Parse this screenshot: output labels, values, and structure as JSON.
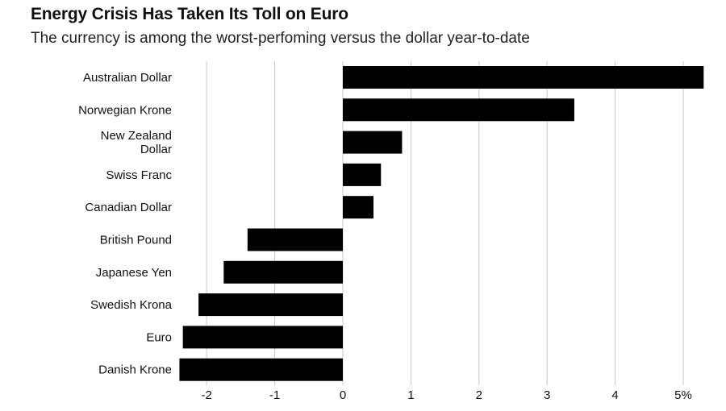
{
  "title": "Energy Crisis Has Taken Its Toll on Euro",
  "subtitle": "The currency is among the worst-perfoming versus the dollar year-to-date",
  "chart_data": {
    "type": "bar",
    "orientation": "horizontal",
    "title": "Energy Crisis Has Taken Its Toll on Euro",
    "subtitle": "The currency is among the worst-perfoming versus the dollar year-to-date",
    "xlabel": "",
    "ylabel": "",
    "xlim": [
      -2.4,
      5.3
    ],
    "grid": true,
    "bar_color": "#000000",
    "categories": [
      "Australian Dollar",
      "Norwegian Krone",
      "New Zealand Dollar",
      "Swiss Franc",
      "Canadian Dollar",
      "British Pound",
      "Japanese Yen",
      "Swedish Krona",
      "Euro",
      "Danish Krone"
    ],
    "category_lines": [
      [
        "Australian Dollar"
      ],
      [
        "Norwegian Krone"
      ],
      [
        "New Zealand",
        "Dollar"
      ],
      [
        "Swiss Franc"
      ],
      [
        "Canadian Dollar"
      ],
      [
        "British Pound"
      ],
      [
        "Japanese Yen"
      ],
      [
        "Swedish Krona"
      ],
      [
        "Euro"
      ],
      [
        "Danish Krone"
      ]
    ],
    "values": [
      5.3,
      3.4,
      0.87,
      0.56,
      0.45,
      -1.4,
      -1.75,
      -2.12,
      -2.35,
      -2.4
    ],
    "ticks": [
      -2,
      -1,
      0,
      1,
      2,
      3,
      4,
      5
    ],
    "tick_labels": [
      "-2",
      "-1",
      "0",
      "1",
      "2",
      "3",
      "4",
      "5%"
    ]
  }
}
